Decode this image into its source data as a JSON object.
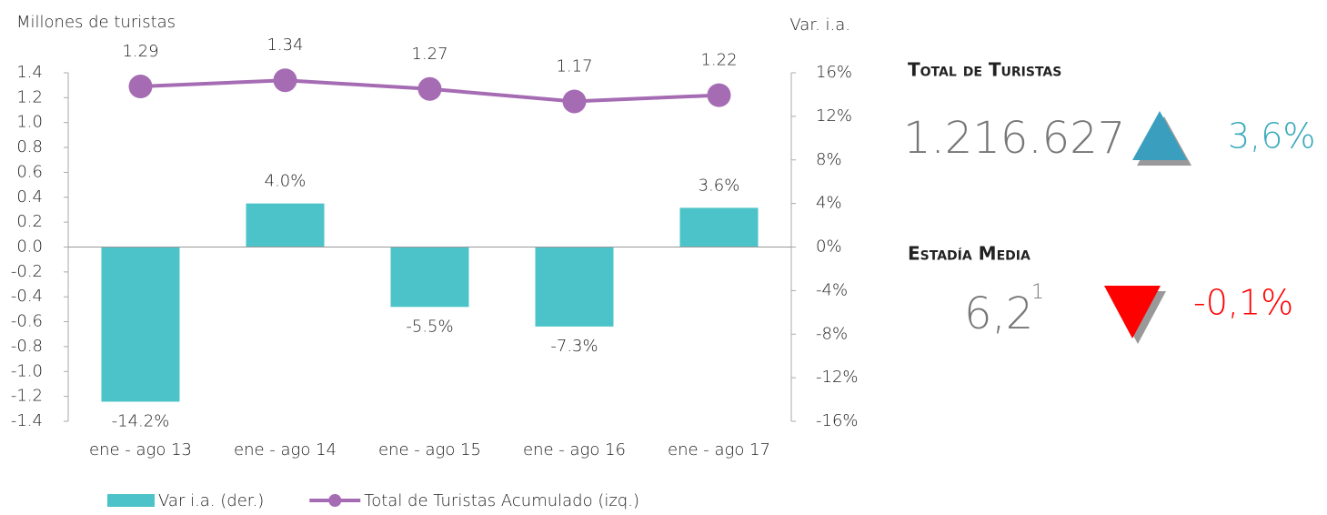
{
  "chart_data": {
    "type": "bar-line",
    "ylabel": "Millones de turistas",
    "y2label": "Var. i.a.",
    "categories": [
      "ene - ago 13",
      "ene - ago 14",
      "ene - ago 15",
      "ene - ago 16",
      "ene - ago 17"
    ],
    "series": [
      {
        "name": "Var i.a. (der.)",
        "type": "bar",
        "axis": "y2",
        "color": "#4bc3c8",
        "values": [
          -14.2,
          4.0,
          -5.5,
          -7.3,
          3.6
        ],
        "value_labels": [
          "-14.2%",
          "4.0%",
          "-5.5%",
          "-7.3%",
          "3.6%"
        ]
      },
      {
        "name": "Total de Turistas Acumulado (izq.)",
        "type": "line",
        "axis": "y",
        "color": "#a56cb4",
        "values": [
          1.29,
          1.34,
          1.27,
          1.17,
          1.22
        ]
      }
    ],
    "ylim": [
      -1.4,
      1.4
    ],
    "yticks": [
      1.4,
      1.2,
      {
        "value": 1,
        "label": "1.0"
      },
      0.8,
      0.6,
      0.4,
      0.2,
      {
        "value": 0,
        "label": "0.0"
      },
      -0.2,
      -0.4,
      -0.6,
      -0.8,
      {
        "value": -1,
        "label": "-1.0"
      },
      -1.2,
      -1.4
    ],
    "y2lim": [
      -16,
      16
    ],
    "y2ticks": [
      {
        "value": 16,
        "label": "16%"
      },
      {
        "value": 12,
        "label": "12%"
      },
      {
        "value": 8,
        "label": "8%"
      },
      {
        "value": 4,
        "label": "4%"
      },
      {
        "value": 0,
        "label": "0%"
      },
      {
        "value": -4,
        "label": "-4%"
      },
      {
        "value": -8,
        "label": "-8%"
      },
      {
        "value": -12,
        "label": "-12%"
      },
      {
        "value": -16,
        "label": "-16%"
      }
    ],
    "legend": "bottom"
  },
  "summary": {
    "total": {
      "label": "Total de Turistas",
      "value": "1.216.627",
      "change": "3,6%"
    },
    "stay": {
      "label": "Estadía Media",
      "value": "6,2",
      "note": "1",
      "change": "-0,1%"
    }
  }
}
